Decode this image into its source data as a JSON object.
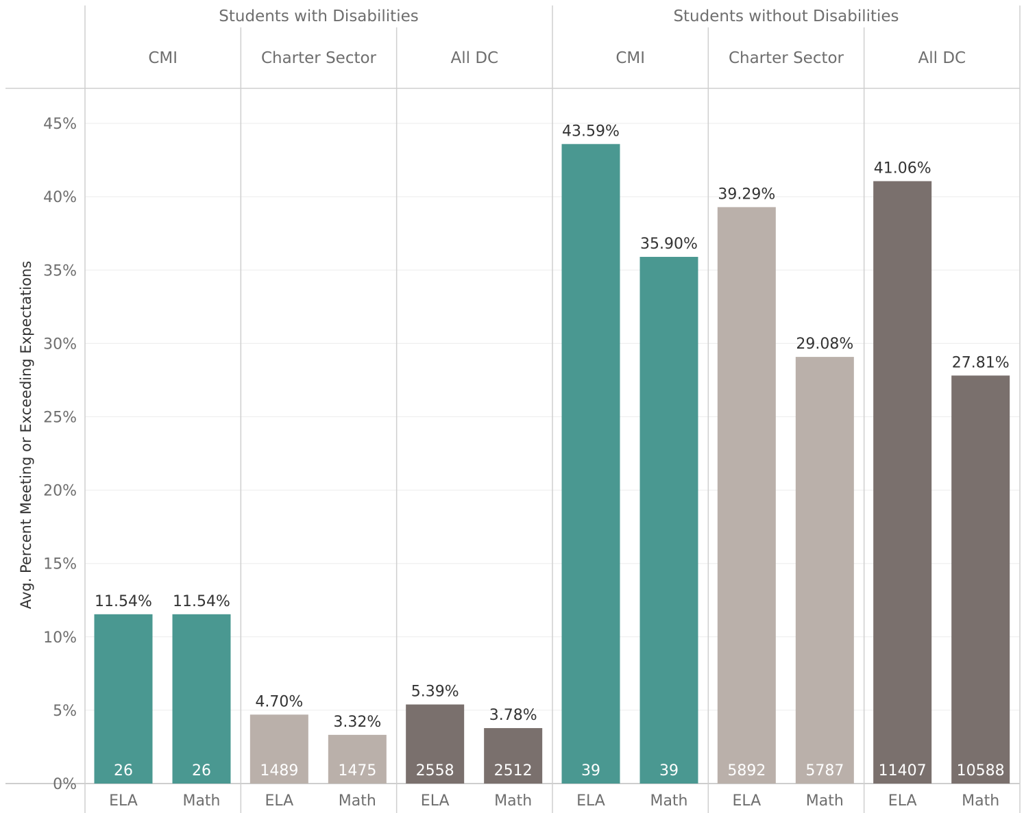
{
  "chart_data": {
    "type": "bar",
    "ylabel": "Avg. Percent Meeting or Exceeding Expectations",
    "ylim": [
      0,
      47
    ],
    "yticks": [
      "0%",
      "5%",
      "10%",
      "15%",
      "20%",
      "25%",
      "30%",
      "35%",
      "40%",
      "45%"
    ],
    "grid": true,
    "colors": {
      "CMI": "#4a9891",
      "Charter Sector": "#bab0aa",
      "All DC": "#7a706d"
    },
    "groups": [
      {
        "label": "Students with Disabilities",
        "panels": [
          {
            "label": "CMI",
            "bars": [
              {
                "category": "ELA",
                "value": 11.54,
                "value_label": "11.54%",
                "n": "26"
              },
              {
                "category": "Math",
                "value": 11.54,
                "value_label": "11.54%",
                "n": "26"
              }
            ]
          },
          {
            "label": "Charter Sector",
            "bars": [
              {
                "category": "ELA",
                "value": 4.7,
                "value_label": "4.70%",
                "n": "1489"
              },
              {
                "category": "Math",
                "value": 3.32,
                "value_label": "3.32%",
                "n": "1475"
              }
            ]
          },
          {
            "label": "All DC",
            "bars": [
              {
                "category": "ELA",
                "value": 5.39,
                "value_label": "5.39%",
                "n": "2558"
              },
              {
                "category": "Math",
                "value": 3.78,
                "value_label": "3.78%",
                "n": "2512"
              }
            ]
          }
        ]
      },
      {
        "label": "Students without Disabilities",
        "panels": [
          {
            "label": "CMI",
            "bars": [
              {
                "category": "ELA",
                "value": 43.59,
                "value_label": "43.59%",
                "n": "39"
              },
              {
                "category": "Math",
                "value": 35.9,
                "value_label": "35.90%",
                "n": "39"
              }
            ]
          },
          {
            "label": "Charter Sector",
            "bars": [
              {
                "category": "ELA",
                "value": 39.29,
                "value_label": "39.29%",
                "n": "5892"
              },
              {
                "category": "Math",
                "value": 29.08,
                "value_label": "29.08%",
                "n": "5787"
              }
            ]
          },
          {
            "label": "All DC",
            "bars": [
              {
                "category": "ELA",
                "value": 41.06,
                "value_label": "41.06%",
                "n": "11407"
              },
              {
                "category": "Math",
                "value": 27.81,
                "value_label": "27.81%",
                "n": "10588"
              }
            ]
          }
        ]
      }
    ]
  }
}
